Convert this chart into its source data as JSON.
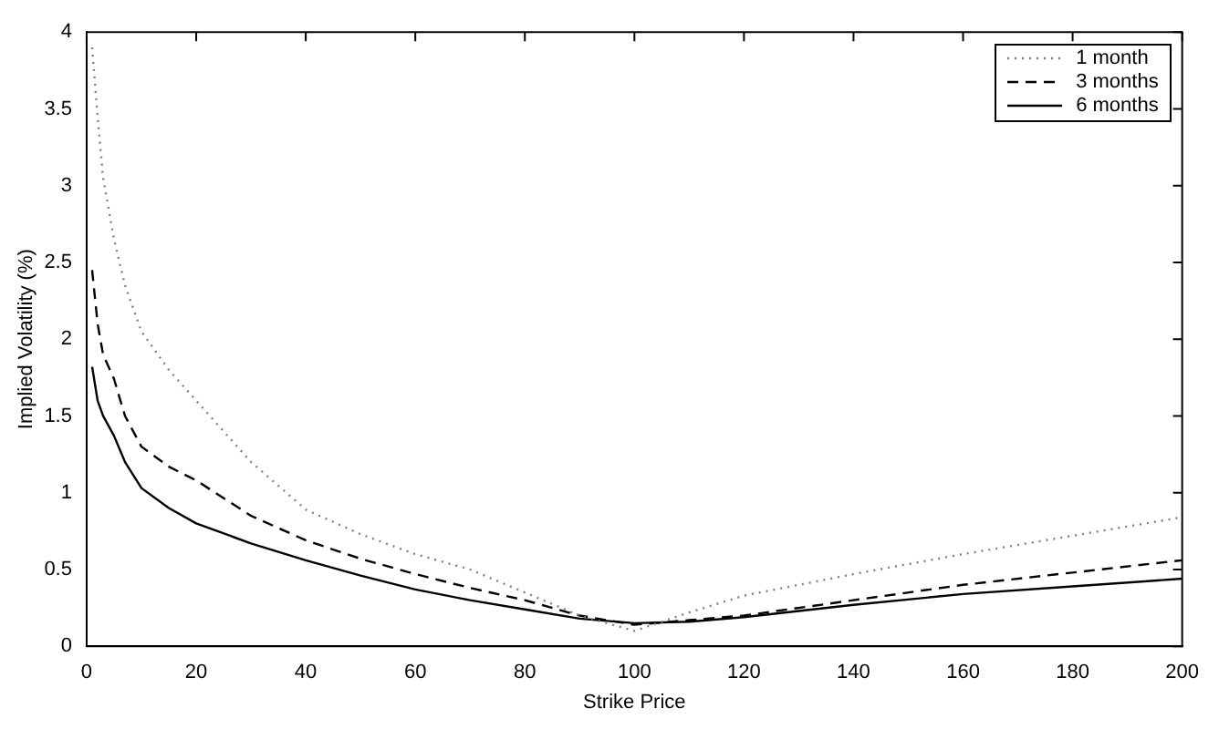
{
  "chart_data": {
    "type": "line",
    "xlabel": "Strike Price",
    "ylabel": "Implied Volatility (%)",
    "xlim": [
      0,
      200
    ],
    "xticks": [
      0,
      20,
      40,
      60,
      80,
      100,
      120,
      140,
      160,
      180,
      200
    ],
    "ylim": [
      0,
      4
    ],
    "yticks": [
      0,
      0.5,
      1,
      1.5,
      2,
      2.5,
      3,
      3.5,
      4
    ],
    "grid": false,
    "legend": "top right",
    "marker": "none",
    "x": [
      1,
      2,
      3,
      5,
      7,
      10,
      15,
      20,
      30,
      40,
      50,
      60,
      70,
      80,
      90,
      100,
      110,
      120,
      140,
      160,
      180,
      200
    ],
    "series": [
      {
        "name": "1 month",
        "color": "#808080",
        "line_style": "dotted",
        "values": [
          3.9,
          3.45,
          3.05,
          2.65,
          2.35,
          2.05,
          1.8,
          1.6,
          1.2,
          0.89,
          0.73,
          0.6,
          0.5,
          0.35,
          0.2,
          0.1,
          0.22,
          0.33,
          0.47,
          0.6,
          0.72,
          0.84
        ]
      },
      {
        "name": "3 months",
        "color": "#000000",
        "line_style": "dashed",
        "values": [
          2.45,
          2.1,
          1.9,
          1.74,
          1.5,
          1.3,
          1.17,
          1.08,
          0.85,
          0.69,
          0.57,
          0.47,
          0.38,
          0.3,
          0.2,
          0.14,
          0.17,
          0.2,
          0.3,
          0.4,
          0.48,
          0.56
        ]
      },
      {
        "name": "6 months",
        "color": "#000000",
        "line_style": "solid",
        "values": [
          1.82,
          1.6,
          1.5,
          1.37,
          1.2,
          1.03,
          0.9,
          0.8,
          0.67,
          0.56,
          0.46,
          0.37,
          0.3,
          0.24,
          0.18,
          0.15,
          0.16,
          0.19,
          0.27,
          0.34,
          0.39,
          0.44
        ]
      }
    ]
  }
}
